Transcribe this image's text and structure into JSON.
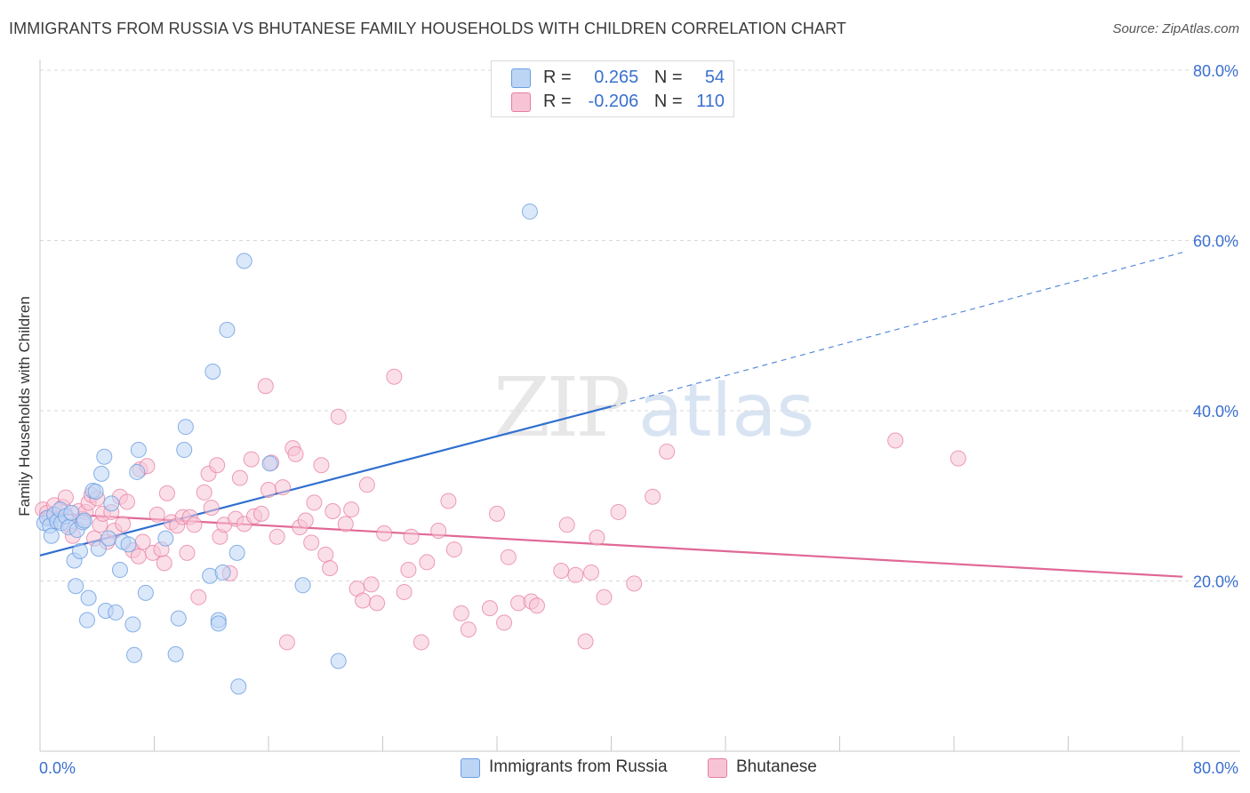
{
  "header": {
    "title": "IMMIGRANTS FROM RUSSIA VS BHUTANESE FAMILY HOUSEHOLDS WITH CHILDREN CORRELATION CHART",
    "source": "Source: ZipAtlas.com"
  },
  "watermark": {
    "zip": "ZIP",
    "atlas": "atlas"
  },
  "legend": {
    "r_label": "R =",
    "n_label": "N =",
    "entries": [
      {
        "r": "0.265",
        "n": "54"
      },
      {
        "r": "-0.206",
        "n": "110"
      }
    ]
  },
  "bottom_legend": [
    "Immigrants from Russia",
    "Bhutanese"
  ],
  "chart_data": {
    "type": "scatter",
    "title": "IMMIGRANTS FROM RUSSIA VS BHUTANESE FAMILY HOUSEHOLDS WITH CHILDREN CORRELATION CHART",
    "xlabel": "",
    "ylabel": "Family Households with Children",
    "xlim": [
      0,
      80
    ],
    "ylim": [
      0,
      80
    ],
    "x_tick_labels": [
      "0.0%",
      "80.0%"
    ],
    "y_tick_labels": [
      "20.0%",
      "40.0%",
      "60.0%",
      "80.0%"
    ],
    "y_ticks": [
      20,
      40,
      60,
      80
    ],
    "colors": {
      "russia": "#6a9ee0",
      "russia_fill": "#bdd5f5",
      "bhutanese": "#e77ca2",
      "bhutanese_fill": "#f7c4d6",
      "russia_line": "#2f6fcf",
      "bhutanese_line": "#e06896",
      "axis_text": "#3a6fd0"
    },
    "series": [
      {
        "name": "Immigrants from Russia",
        "r": 0.265,
        "n": 54,
        "trend": {
          "x0": 0,
          "y0": 23.0,
          "x1": 40,
          "y1": 40.5,
          "dash_x1": 80,
          "dash_y1": 58.6
        },
        "points": [
          [
            0.3,
            26.8
          ],
          [
            0.5,
            27.4
          ],
          [
            0.7,
            26.5
          ],
          [
            0.8,
            25.3
          ],
          [
            1.0,
            27.8
          ],
          [
            1.2,
            27.0
          ],
          [
            1.4,
            28.4
          ],
          [
            1.5,
            26.8
          ],
          [
            1.8,
            27.6
          ],
          [
            2.0,
            26.3
          ],
          [
            2.2,
            28.0
          ],
          [
            2.4,
            22.4
          ],
          [
            2.6,
            26.0
          ],
          [
            2.5,
            19.4
          ],
          [
            2.8,
            23.5
          ],
          [
            3.0,
            26.9
          ],
          [
            3.1,
            27.1
          ],
          [
            3.3,
            15.4
          ],
          [
            3.4,
            18.0
          ],
          [
            3.7,
            30.6
          ],
          [
            3.9,
            30.5
          ],
          [
            4.1,
            23.8
          ],
          [
            4.3,
            32.6
          ],
          [
            4.5,
            34.6
          ],
          [
            4.6,
            16.5
          ],
          [
            4.8,
            25.0
          ],
          [
            5.0,
            29.1
          ],
          [
            5.3,
            16.3
          ],
          [
            5.6,
            21.3
          ],
          [
            5.8,
            24.6
          ],
          [
            6.2,
            24.3
          ],
          [
            6.5,
            14.9
          ],
          [
            6.6,
            11.3
          ],
          [
            6.9,
            35.4
          ],
          [
            7.4,
            18.6
          ],
          [
            8.8,
            25.0
          ],
          [
            9.5,
            11.4
          ],
          [
            9.7,
            15.6
          ],
          [
            10.1,
            35.4
          ],
          [
            10.2,
            38.1
          ],
          [
            11.9,
            20.6
          ],
          [
            12.1,
            44.6
          ],
          [
            12.5,
            15.4
          ],
          [
            12.5,
            15.0
          ],
          [
            12.8,
            21.0
          ],
          [
            13.1,
            49.5
          ],
          [
            13.8,
            23.3
          ],
          [
            13.9,
            7.6
          ],
          [
            14.3,
            57.6
          ],
          [
            16.1,
            33.8
          ],
          [
            18.4,
            19.5
          ],
          [
            20.9,
            10.6
          ],
          [
            34.3,
            63.4
          ],
          [
            6.8,
            32.8
          ]
        ]
      },
      {
        "name": "Bhutanese",
        "r": -0.206,
        "n": 110,
        "trend": {
          "x0": 0,
          "y0": 28.0,
          "x1": 80,
          "y1": 20.5
        },
        "points": [
          [
            0.2,
            28.4
          ],
          [
            0.5,
            28.0
          ],
          [
            0.7,
            27.5
          ],
          [
            1.0,
            28.9
          ],
          [
            1.3,
            27.3
          ],
          [
            1.6,
            28.7
          ],
          [
            1.8,
            29.8
          ],
          [
            2.1,
            26.5
          ],
          [
            2.3,
            25.3
          ],
          [
            2.7,
            28.2
          ],
          [
            3.0,
            27.3
          ],
          [
            3.2,
            28.1
          ],
          [
            3.4,
            29.2
          ],
          [
            3.6,
            30.1
          ],
          [
            3.8,
            25.0
          ],
          [
            4.0,
            29.7
          ],
          [
            4.2,
            26.6
          ],
          [
            4.4,
            27.9
          ],
          [
            4.7,
            24.6
          ],
          [
            5.0,
            28.1
          ],
          [
            5.2,
            25.9
          ],
          [
            5.6,
            29.9
          ],
          [
            5.8,
            26.7
          ],
          [
            6.1,
            29.3
          ],
          [
            6.5,
            23.6
          ],
          [
            6.9,
            22.9
          ],
          [
            7.0,
            33.1
          ],
          [
            7.2,
            24.6
          ],
          [
            7.5,
            33.5
          ],
          [
            7.9,
            23.3
          ],
          [
            8.2,
            27.8
          ],
          [
            8.5,
            23.7
          ],
          [
            8.7,
            22.1
          ],
          [
            8.9,
            30.3
          ],
          [
            9.2,
            26.9
          ],
          [
            9.6,
            26.5
          ],
          [
            10.0,
            27.5
          ],
          [
            10.3,
            23.3
          ],
          [
            10.5,
            27.5
          ],
          [
            10.8,
            26.6
          ],
          [
            11.1,
            18.1
          ],
          [
            11.5,
            30.4
          ],
          [
            11.8,
            32.6
          ],
          [
            12.0,
            28.6
          ],
          [
            12.4,
            33.6
          ],
          [
            12.6,
            25.2
          ],
          [
            12.9,
            26.6
          ],
          [
            13.3,
            20.9
          ],
          [
            13.7,
            27.3
          ],
          [
            14.0,
            32.1
          ],
          [
            14.3,
            26.7
          ],
          [
            14.8,
            34.3
          ],
          [
            15.0,
            27.6
          ],
          [
            15.5,
            27.9
          ],
          [
            15.8,
            42.9
          ],
          [
            16.0,
            30.7
          ],
          [
            16.2,
            33.9
          ],
          [
            16.6,
            25.2
          ],
          [
            17.0,
            31.0
          ],
          [
            17.3,
            12.8
          ],
          [
            17.7,
            35.6
          ],
          [
            17.9,
            34.9
          ],
          [
            18.2,
            26.3
          ],
          [
            18.6,
            27.1
          ],
          [
            19.0,
            24.5
          ],
          [
            19.2,
            29.2
          ],
          [
            19.7,
            33.6
          ],
          [
            20.0,
            23.1
          ],
          [
            20.3,
            21.5
          ],
          [
            20.5,
            28.2
          ],
          [
            20.9,
            39.3
          ],
          [
            21.4,
            26.7
          ],
          [
            21.8,
            28.4
          ],
          [
            22.2,
            19.1
          ],
          [
            22.6,
            17.7
          ],
          [
            22.9,
            31.3
          ],
          [
            23.2,
            19.6
          ],
          [
            23.6,
            17.4
          ],
          [
            24.1,
            25.6
          ],
          [
            24.8,
            44.0
          ],
          [
            25.5,
            18.7
          ],
          [
            25.8,
            21.3
          ],
          [
            26.0,
            25.2
          ],
          [
            26.7,
            12.8
          ],
          [
            27.1,
            22.2
          ],
          [
            27.9,
            25.9
          ],
          [
            28.6,
            29.4
          ],
          [
            29.0,
            23.7
          ],
          [
            29.5,
            16.2
          ],
          [
            30.0,
            14.3
          ],
          [
            31.5,
            16.8
          ],
          [
            32.0,
            27.9
          ],
          [
            32.8,
            22.8
          ],
          [
            33.5,
            17.4
          ],
          [
            34.4,
            17.6
          ],
          [
            34.8,
            17.1
          ],
          [
            36.5,
            21.2
          ],
          [
            36.9,
            26.6
          ],
          [
            37.5,
            20.7
          ],
          [
            38.2,
            12.9
          ],
          [
            38.6,
            21.0
          ],
          [
            39.0,
            25.1
          ],
          [
            39.5,
            18.1
          ],
          [
            40.5,
            28.1
          ],
          [
            41.6,
            19.7
          ],
          [
            42.9,
            29.9
          ],
          [
            43.9,
            35.2
          ],
          [
            59.9,
            36.5
          ],
          [
            64.3,
            34.4
          ],
          [
            32.5,
            15.1
          ]
        ]
      }
    ]
  }
}
